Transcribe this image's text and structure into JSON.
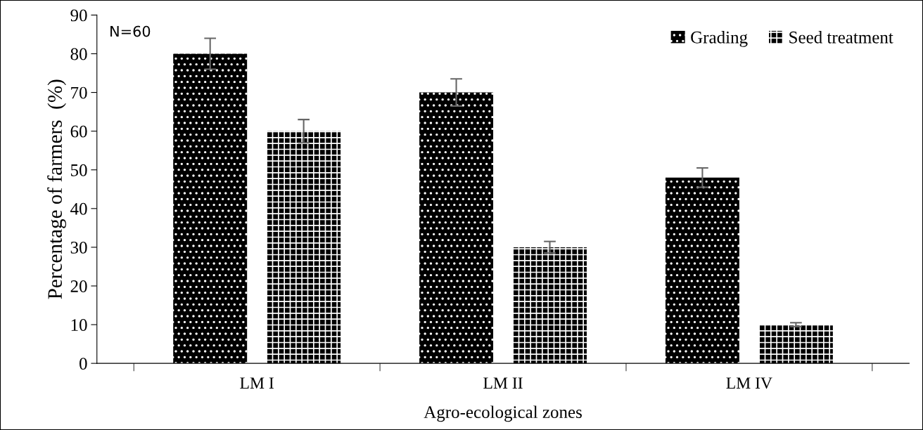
{
  "chart_data": {
    "type": "bar",
    "xlabel": "Agro-ecological zones",
    "ylabel": "Percentage of farmers  (%)",
    "categories": [
      "LM I",
      "LM II",
      "LM IV"
    ],
    "series": [
      {
        "name": "Grading",
        "color": "#000000",
        "values": [
          80,
          70,
          48
        ],
        "errors": [
          4,
          3.5,
          2.5
        ]
      },
      {
        "name": "Seed treatment",
        "color": "#000000",
        "values": [
          60,
          30,
          10
        ],
        "errors": [
          3,
          1.5,
          0.5
        ]
      }
    ],
    "ylim": [
      0,
      90
    ],
    "yticks": [
      0,
      10,
      20,
      30,
      40,
      50,
      60,
      70,
      80,
      90
    ],
    "grid": false,
    "legend": "top right",
    "annotations": [
      "N=60"
    ]
  }
}
